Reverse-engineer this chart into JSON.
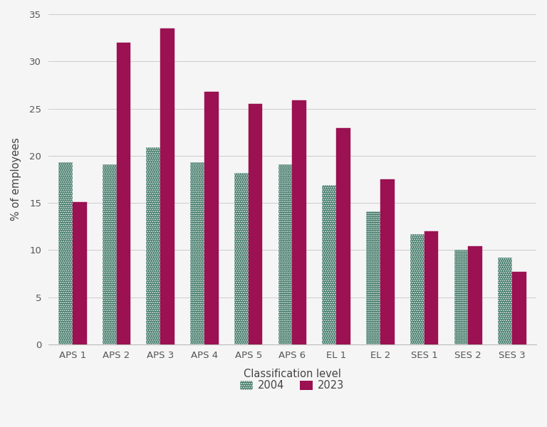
{
  "categories": [
    "APS 1",
    "APS 2",
    "APS 3",
    "APS 4",
    "APS 5",
    "APS 6",
    "EL 1",
    "EL 2",
    "SES 1",
    "SES 2",
    "SES 3"
  ],
  "values_2004": [
    19.3,
    19.1,
    20.9,
    19.3,
    18.2,
    19.1,
    16.9,
    14.1,
    11.7,
    10.0,
    9.2
  ],
  "values_2023": [
    15.1,
    32.0,
    33.5,
    26.8,
    25.5,
    25.9,
    22.9,
    17.5,
    12.0,
    10.4,
    7.7
  ],
  "color_2004": "#2d6b58",
  "color_2023": "#9b1152",
  "xlabel": "Classification level",
  "ylabel": "% of employees",
  "legend_2004": "2004",
  "legend_2023": "2023",
  "ylim": [
    0,
    35
  ],
  "yticks": [
    0,
    5,
    10,
    15,
    20,
    25,
    30,
    35
  ],
  "bar_width": 0.32,
  "background_color": "#f5f5f5",
  "grid_color": "#cccccc",
  "title": ""
}
